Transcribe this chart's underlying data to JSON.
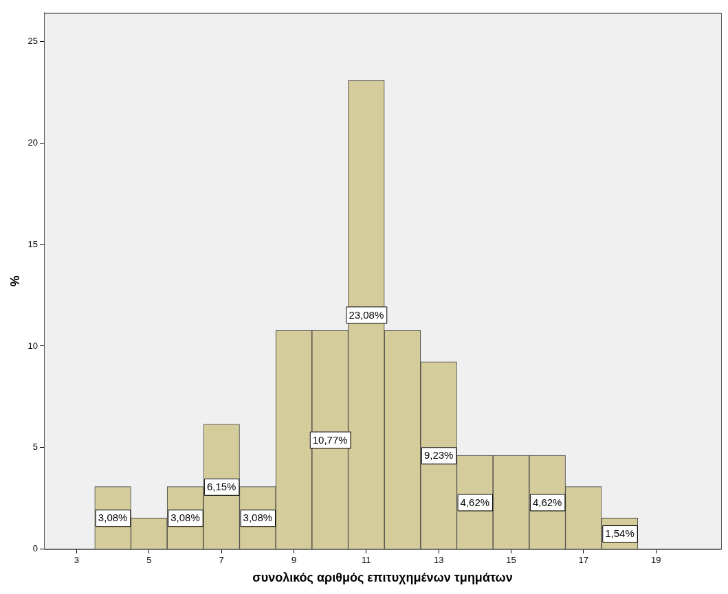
{
  "chart_data": {
    "type": "histogram",
    "xlabel": "συνολικός αριθμός επιτυχημένων τμημάτων",
    "ylabel": "%",
    "bins": [
      3.5,
      4.5,
      5.5,
      6.5,
      7.5,
      8.5,
      9.5,
      10.5,
      11.5,
      12.5,
      13.5,
      14.5,
      15.5,
      16.5,
      17.5,
      18.5
    ],
    "values": [
      3.08,
      1.54,
      3.08,
      6.15,
      3.08,
      10.77,
      10.77,
      23.08,
      10.77,
      9.23,
      4.62,
      4.62,
      4.62,
      3.08,
      1.54
    ],
    "value_labels": [
      "3,08%",
      null,
      "3,08%",
      "6,15%",
      "3,08%",
      null,
      "10,77%",
      "23,08%",
      null,
      "9,23%",
      "4,62%",
      null,
      "4,62%",
      null,
      "1,54%"
    ],
    "color": "#d5cc9b",
    "xlim": [
      2.1,
      20.8
    ],
    "xticks": [
      3,
      5,
      7,
      9,
      11,
      13,
      15,
      17,
      19
    ],
    "ylim": [
      0,
      26.4
    ],
    "yticks": [
      0,
      5,
      10,
      15,
      20,
      25
    ],
    "grid": false,
    "legend": false
  }
}
